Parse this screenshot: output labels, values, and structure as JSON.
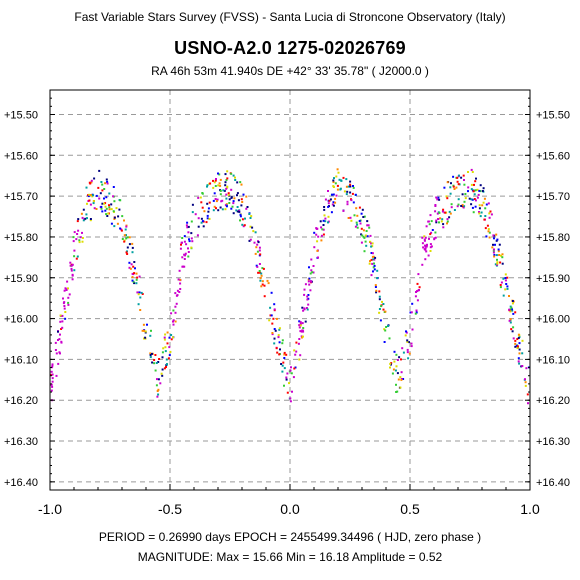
{
  "header": {
    "survey": "Fast Variable Stars Survey (FVSS) - Santa Lucia di Stroncone Observatory (Italy)",
    "star": "USNO-A2.0  1275-02026769",
    "coords": "RA  46h 53m 41.940s     DE  +42° 33' 35.78\"     ( J2000.0 )"
  },
  "footer": {
    "period_line": "PERIOD = 0.26990 days      EPOCH = 2455499.34496  ( HJD, zero phase )",
    "magnitude_line": "MAGNITUDE:  Max = 15.66   Min = 16.18   Amplitude = 0.52"
  },
  "chart_data": {
    "type": "scatter",
    "title": "USNO-A2.0  1275-02026769",
    "xlabel": "",
    "ylabel": "",
    "xlim": [
      -1.0,
      1.0
    ],
    "ylim": [
      16.42,
      15.44
    ],
    "y_inverted": true,
    "x_ticks": [
      "-1.0",
      "-0.5",
      "0.0",
      "0.5",
      "1.0"
    ],
    "y_ticks": [
      "+15.50",
      "+15.60",
      "+15.70",
      "+15.80",
      "+15.90",
      "+16.00",
      "+16.10",
      "+16.20",
      "+16.30",
      "+16.40"
    ],
    "grid": true,
    "period_days": 0.2699,
    "epoch_hjd": 2455499.34496,
    "mag_max": 15.66,
    "mag_min": 16.18,
    "amplitude": 0.52,
    "light_curve": {
      "phase": [
        -1.0,
        -0.96,
        -0.9,
        -0.85,
        -0.8,
        -0.76,
        -0.72,
        -0.68,
        -0.64,
        -0.6,
        -0.55,
        -0.5,
        -0.48,
        -0.45,
        -0.4,
        -0.35,
        -0.3,
        -0.25,
        -0.2,
        -0.15,
        -0.1,
        -0.05,
        0.0
      ],
      "magnitude": [
        16.18,
        16.05,
        15.84,
        15.73,
        15.68,
        15.7,
        15.74,
        15.8,
        15.9,
        16.03,
        16.15,
        16.04,
        15.98,
        15.85,
        15.76,
        15.72,
        15.69,
        15.68,
        15.72,
        15.8,
        15.93,
        16.05,
        16.18
      ]
    },
    "series": [
      {
        "color": "#cc00cc"
      },
      {
        "color": "#000080"
      },
      {
        "color": "#ff0000"
      },
      {
        "color": "#00a0a0"
      },
      {
        "color": "#0000ff"
      },
      {
        "color": "#33cc33"
      },
      {
        "color": "#dddd00"
      },
      {
        "color": "#ff8800"
      }
    ]
  }
}
